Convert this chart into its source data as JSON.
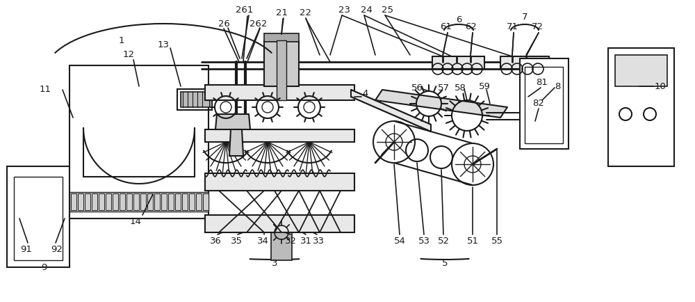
{
  "bg_color": "#ffffff",
  "lc": "#1a1a1a",
  "lw": 1.5,
  "fs": 9.5,
  "figsize": [
    10.0,
    4.34
  ],
  "dpi": 100
}
